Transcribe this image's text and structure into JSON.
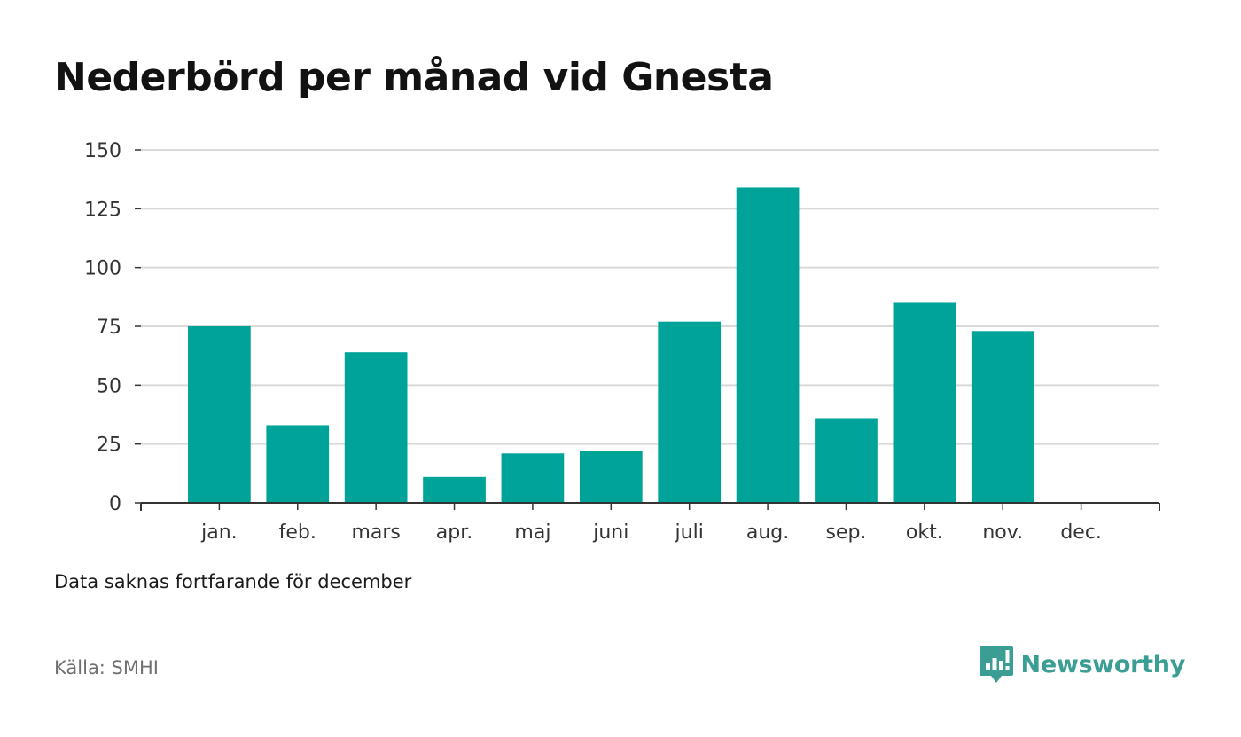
{
  "title": "Nederbörd per månad vid Gnesta",
  "note": "Data saknas fortfarande för december",
  "source": "Källa: SMHI",
  "brand": {
    "name": "Newsworthy",
    "icon": "newsworthy-logo-icon",
    "color": "#3a9e95"
  },
  "chart_data": {
    "type": "bar",
    "categories": [
      "jan.",
      "feb.",
      "mars",
      "apr.",
      "maj",
      "juni",
      "juli",
      "aug.",
      "sep.",
      "okt.",
      "nov.",
      "dec."
    ],
    "values": [
      75,
      33,
      64,
      11,
      21,
      22,
      77,
      134,
      36,
      85,
      73,
      null
    ],
    "ylim": [
      0,
      150
    ],
    "yticks": [
      0,
      25,
      50,
      75,
      100,
      125,
      150
    ],
    "bar_color": "#00a398",
    "grid": true,
    "xlabel": "",
    "ylabel": ""
  }
}
